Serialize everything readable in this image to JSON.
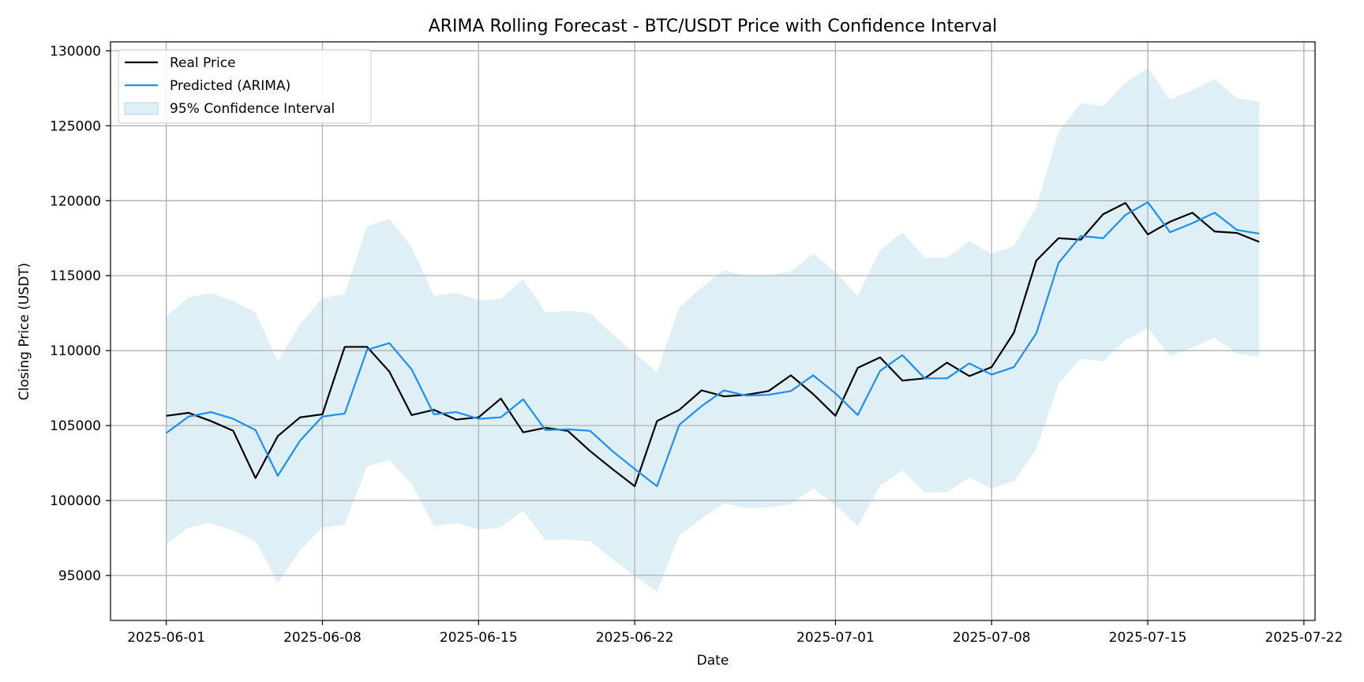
{
  "chart_data": {
    "type": "line",
    "title": "ARIMA Rolling Forecast - BTC/USDT Price with Confidence Interval",
    "xlabel": "Date",
    "ylabel": "Closing Price (USDT)",
    "x_start": "2025-06-01",
    "x_ticks": [
      "2025-06-01",
      "2025-06-08",
      "2025-06-15",
      "2025-06-22",
      "2025-07-01",
      "2025-07-08",
      "2025-07-15",
      "2025-07-22"
    ],
    "xlim": [
      "2025-05-29T12:00",
      "2025-07-22T12:00"
    ],
    "y_ticks": [
      95000,
      100000,
      105000,
      110000,
      115000,
      120000,
      125000,
      130000
    ],
    "ylim": [
      92000,
      130600
    ],
    "grid": true,
    "legend": {
      "placement": "top-left",
      "entries": [
        "Real Price",
        "Predicted (ARIMA)",
        "95% Confidence Interval"
      ]
    },
    "colors": {
      "real": "#000000",
      "predicted": "#1e8ef0",
      "ci_fill": "#add8e6",
      "grid": "#b0b0b0"
    },
    "series": [
      {
        "name": "Real Price",
        "values": [
          105650,
          105850,
          105300,
          104650,
          101500,
          104300,
          105550,
          105750,
          110250,
          110250,
          108600,
          105700,
          106050,
          105400,
          105550,
          106800,
          104550,
          104850,
          104650,
          103300,
          102100,
          100950,
          105300,
          106050,
          107350,
          106950,
          107050,
          107300,
          108350,
          107100,
          105650,
          108850,
          109550,
          108000,
          108150,
          109200,
          108300,
          108900,
          111200,
          116000,
          117500,
          117400,
          119100,
          119850,
          117750,
          118600,
          119200,
          117950,
          117850,
          117250
        ]
      },
      {
        "name": "Predicted (ARIMA)",
        "values": [
          104500,
          105600,
          105900,
          105450,
          104700,
          101650,
          104000,
          105600,
          105800,
          110050,
          110500,
          108750,
          105750,
          105900,
          105450,
          105550,
          106750,
          104700,
          104750,
          104650,
          103300,
          102100,
          100950,
          105050,
          106300,
          107350,
          107000,
          107050,
          107300,
          108350,
          107150,
          105700,
          108650,
          109700,
          108150,
          108150,
          109150,
          108400,
          108900,
          111150,
          115850,
          117650,
          117500,
          119050,
          119900,
          117900,
          118500,
          119200,
          118050,
          117800
        ]
      },
      {
        "name": "95% Confidence Interval",
        "lower": [
          97100,
          98200,
          98500,
          98000,
          97300,
          94500,
          96700,
          98200,
          98400,
          102300,
          102700,
          101100,
          98300,
          98500,
          98050,
          98200,
          99300,
          97350,
          97400,
          97300,
          96100,
          94950,
          93900,
          97700,
          98800,
          99800,
          99500,
          99550,
          99750,
          100800,
          99700,
          98300,
          101000,
          102000,
          100550,
          100550,
          101550,
          100800,
          101300,
          103400,
          107800,
          109450,
          109300,
          110700,
          111500,
          109650,
          110200,
          110850,
          109800,
          109600
        ],
        "upper": [
          112300,
          113550,
          113850,
          113300,
          112550,
          109300,
          111750,
          113500,
          113750,
          118300,
          118800,
          116900,
          113650,
          113850,
          113350,
          113450,
          114750,
          112550,
          112650,
          112500,
          111100,
          109850,
          108550,
          112900,
          114200,
          115350,
          115000,
          115000,
          115300,
          116450,
          115250,
          113650,
          116700,
          117900,
          116200,
          116200,
          117300,
          116450,
          117000,
          119550,
          124600,
          126500,
          126300,
          127850,
          128850,
          126750,
          127400,
          128100,
          126850,
          126600
        ]
      }
    ]
  }
}
